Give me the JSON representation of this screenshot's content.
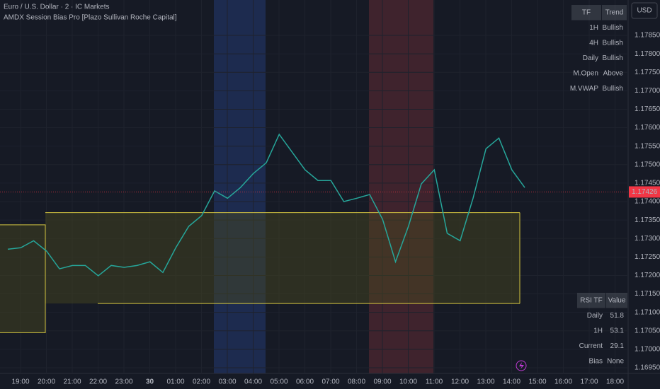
{
  "header": {
    "symbol": "Euro / U.S. Dollar · 2 · IC Markets",
    "indicator": "AMDX Session Bias Pro [Plazo Sullivan Roche Capital]"
  },
  "currency": "USD",
  "chart": {
    "type": "line",
    "price_ticks": [
      {
        "value": 1.1785,
        "label": "1.17850"
      },
      {
        "value": 1.178,
        "label": "1.17800"
      },
      {
        "value": 1.1775,
        "label": "1.17750"
      },
      {
        "value": 1.177,
        "label": "1.17700"
      },
      {
        "value": 1.1765,
        "label": "1.17650"
      },
      {
        "value": 1.176,
        "label": "1.17600"
      },
      {
        "value": 1.1755,
        "label": "1.17550"
      },
      {
        "value": 1.175,
        "label": "1.17500"
      },
      {
        "value": 1.1745,
        "label": "1.17450"
      },
      {
        "value": 1.174,
        "label": "1.17400"
      },
      {
        "value": 1.1735,
        "label": "1.17350"
      },
      {
        "value": 1.173,
        "label": "1.17300"
      },
      {
        "value": 1.1725,
        "label": "1.17250"
      },
      {
        "value": 1.172,
        "label": "1.17200"
      },
      {
        "value": 1.1715,
        "label": "1.17150"
      },
      {
        "value": 1.171,
        "label": "1.17100"
      },
      {
        "value": 1.1705,
        "label": "1.17050"
      },
      {
        "value": 1.17,
        "label": "1.17000"
      },
      {
        "value": 1.1695,
        "label": "1.16950"
      }
    ],
    "time_labels": [
      "19:00",
      "20:00",
      "21:00",
      "22:00",
      "23:00",
      "30",
      "01:00",
      "02:00",
      "03:00",
      "04:00",
      "05:00",
      "06:00",
      "07:00",
      "08:00",
      "09:00",
      "10:00",
      "11:00",
      "12:00",
      "13:00",
      "14:00",
      "15:00",
      "16:00",
      "17:00",
      "18:00"
    ],
    "current_price": 1.17426,
    "range_high": 1.1737,
    "range_low": 1.17124,
    "early_range_high": 1.17337,
    "early_range_low": 1.17045,
    "close": [
      1.17271,
      1.17275,
      1.17294,
      1.17266,
      1.17218,
      1.17227,
      1.17227,
      1.17199,
      1.17227,
      1.17222,
      1.17227,
      1.17237,
      1.17208,
      1.17275,
      1.17333,
      1.17362,
      1.17429,
      1.17409,
      1.17438,
      1.17476,
      1.17505,
      1.17582,
      1.17534,
      1.17486,
      1.17457,
      1.17457,
      1.174,
      1.17409,
      1.17419,
      1.17352,
      1.17237,
      1.17333,
      1.17448,
      1.17486,
      1.17314,
      1.17294,
      1.17409,
      1.17543,
      1.17572,
      1.17486,
      1.17438
    ]
  },
  "trend_table": {
    "header": [
      "TF",
      "Trend"
    ],
    "rows": [
      [
        "1H",
        "Bullish"
      ],
      [
        "4H",
        "Bullish"
      ],
      [
        "Daily",
        "Bullish"
      ],
      [
        "M.Open",
        "Above"
      ],
      [
        "M.VWAP",
        "Bullish"
      ]
    ]
  },
  "rsi_table": {
    "header": [
      "RSI TF",
      "Value"
    ],
    "rows": [
      [
        "Daily",
        "51.8"
      ],
      [
        "1H",
        "53.1"
      ],
      [
        "Current",
        "29.1"
      ],
      [
        "Bias",
        "None"
      ]
    ]
  }
}
